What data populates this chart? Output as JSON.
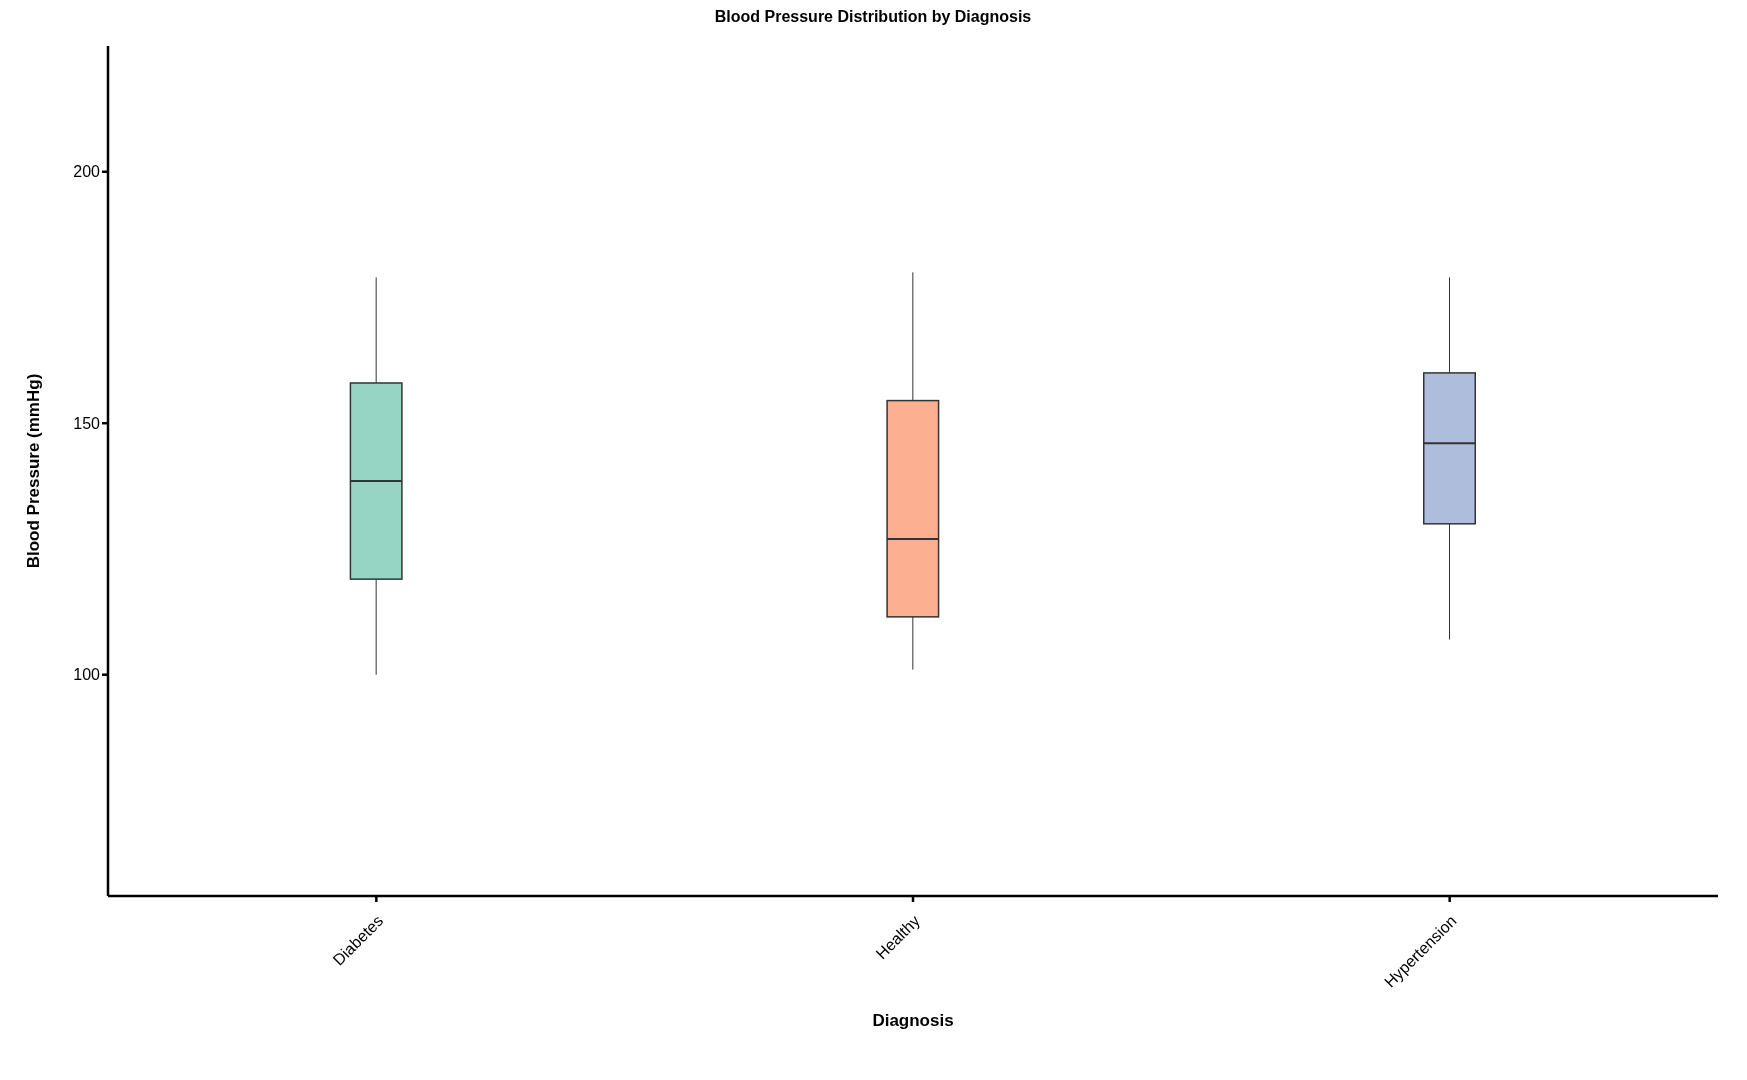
{
  "chart_data": {
    "type": "box",
    "title": "Blood Pressure Distribution by Diagnosis",
    "xlabel": "Diagnosis",
    "ylabel": "Blood Pressure (mmHg)",
    "categories": [
      "Diabetes",
      "Healthy",
      "Hypertension"
    ],
    "colors": [
      "#96d5c3",
      "#fcaf91",
      "#afbddc"
    ],
    "boxes": [
      {
        "low": 100,
        "q1": 119,
        "median": 138.5,
        "q3": 158,
        "high": 179
      },
      {
        "low": 101,
        "q1": 111.5,
        "median": 127,
        "q3": 154.5,
        "high": 180
      },
      {
        "low": 107,
        "q1": 130,
        "median": 146,
        "q3": 160,
        "high": 179
      }
    ],
    "ylim": [
      56,
      225
    ],
    "yticks": [
      100,
      150,
      200
    ],
    "grid": false,
    "legend": false
  }
}
